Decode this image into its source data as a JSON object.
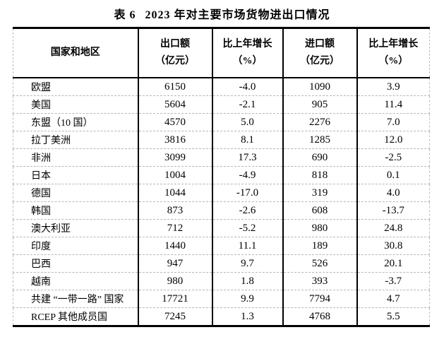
{
  "title": {
    "label": "表 6",
    "text": "2023 年对主要市场货物进出口情况"
  },
  "table": {
    "columns": [
      {
        "line1": "国家和地区",
        "line2": ""
      },
      {
        "line1": "出口额",
        "line2": "（亿元）"
      },
      {
        "line1": "比上年增长",
        "line2": "（%）"
      },
      {
        "line1": "进口额",
        "line2": "（亿元）"
      },
      {
        "line1": "比上年增长",
        "line2": "（%）"
      }
    ],
    "rows": [
      {
        "region": "欧盟",
        "export": "6150",
        "export_growth": "-4.0",
        "import": "1090",
        "import_growth": "3.9"
      },
      {
        "region": "美国",
        "export": "5604",
        "export_growth": "-2.1",
        "import": "905",
        "import_growth": "11.4"
      },
      {
        "region": "东盟（10 国）",
        "export": "4570",
        "export_growth": "5.0",
        "import": "2276",
        "import_growth": "7.0"
      },
      {
        "region": "拉丁美洲",
        "export": "3816",
        "export_growth": "8.1",
        "import": "1285",
        "import_growth": "12.0"
      },
      {
        "region": "非洲",
        "export": "3099",
        "export_growth": "17.3",
        "import": "690",
        "import_growth": "-2.5"
      },
      {
        "region": "日本",
        "export": "1004",
        "export_growth": "-4.9",
        "import": "818",
        "import_growth": "0.1"
      },
      {
        "region": "德国",
        "export": "1044",
        "export_growth": "-17.0",
        "import": "319",
        "import_growth": "4.0"
      },
      {
        "region": "韩国",
        "export": "873",
        "export_growth": "-2.6",
        "import": "608",
        "import_growth": "-13.7"
      },
      {
        "region": "澳大利亚",
        "export": "712",
        "export_growth": "-5.2",
        "import": "980",
        "import_growth": "24.8"
      },
      {
        "region": "印度",
        "export": "1440",
        "export_growth": "11.1",
        "import": "189",
        "import_growth": "30.8"
      },
      {
        "region": "巴西",
        "export": "947",
        "export_growth": "9.7",
        "import": "526",
        "import_growth": "20.1"
      },
      {
        "region": "越南",
        "export": "980",
        "export_growth": "1.8",
        "import": "393",
        "import_growth": "-3.7"
      },
      {
        "region": "共建 “一带一路” 国家",
        "export": "17721",
        "export_growth": "9.9",
        "import": "7794",
        "import_growth": "4.7"
      },
      {
        "region": "RCEP 其他成员国",
        "export": "7245",
        "export_growth": "1.3",
        "import": "4768",
        "import_growth": "5.5"
      }
    ]
  }
}
